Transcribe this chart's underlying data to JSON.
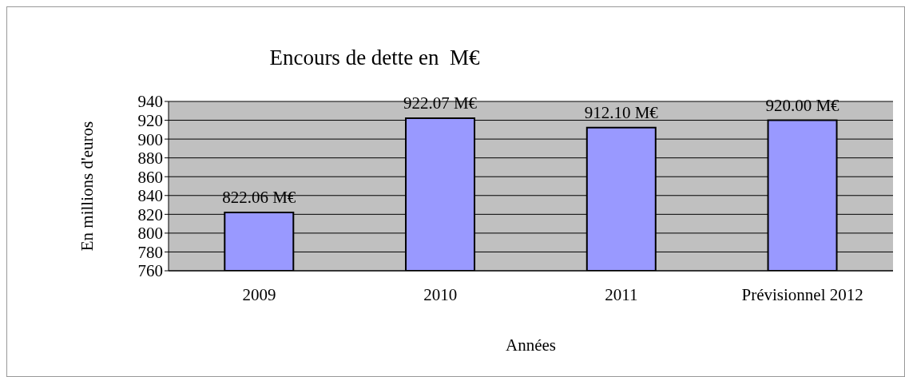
{
  "chart_data": {
    "type": "bar",
    "title": "Encours de dette en  M€",
    "xlabel": "Années",
    "ylabel": "En millions d'euros",
    "categories": [
      "2009",
      "2010",
      "2011",
      "Prévisionnel 2012"
    ],
    "values": [
      822.06,
      922.07,
      912.1,
      920.0
    ],
    "value_labels": [
      "822.06 M€",
      "922.07 M€",
      "912.10 M€",
      "920.00 M€"
    ],
    "color": "#9999ff",
    "ylim": [
      760,
      940
    ],
    "yticks": [
      760,
      780,
      800,
      820,
      840,
      860,
      880,
      900,
      920,
      940
    ],
    "grid": "y",
    "legend": false
  }
}
